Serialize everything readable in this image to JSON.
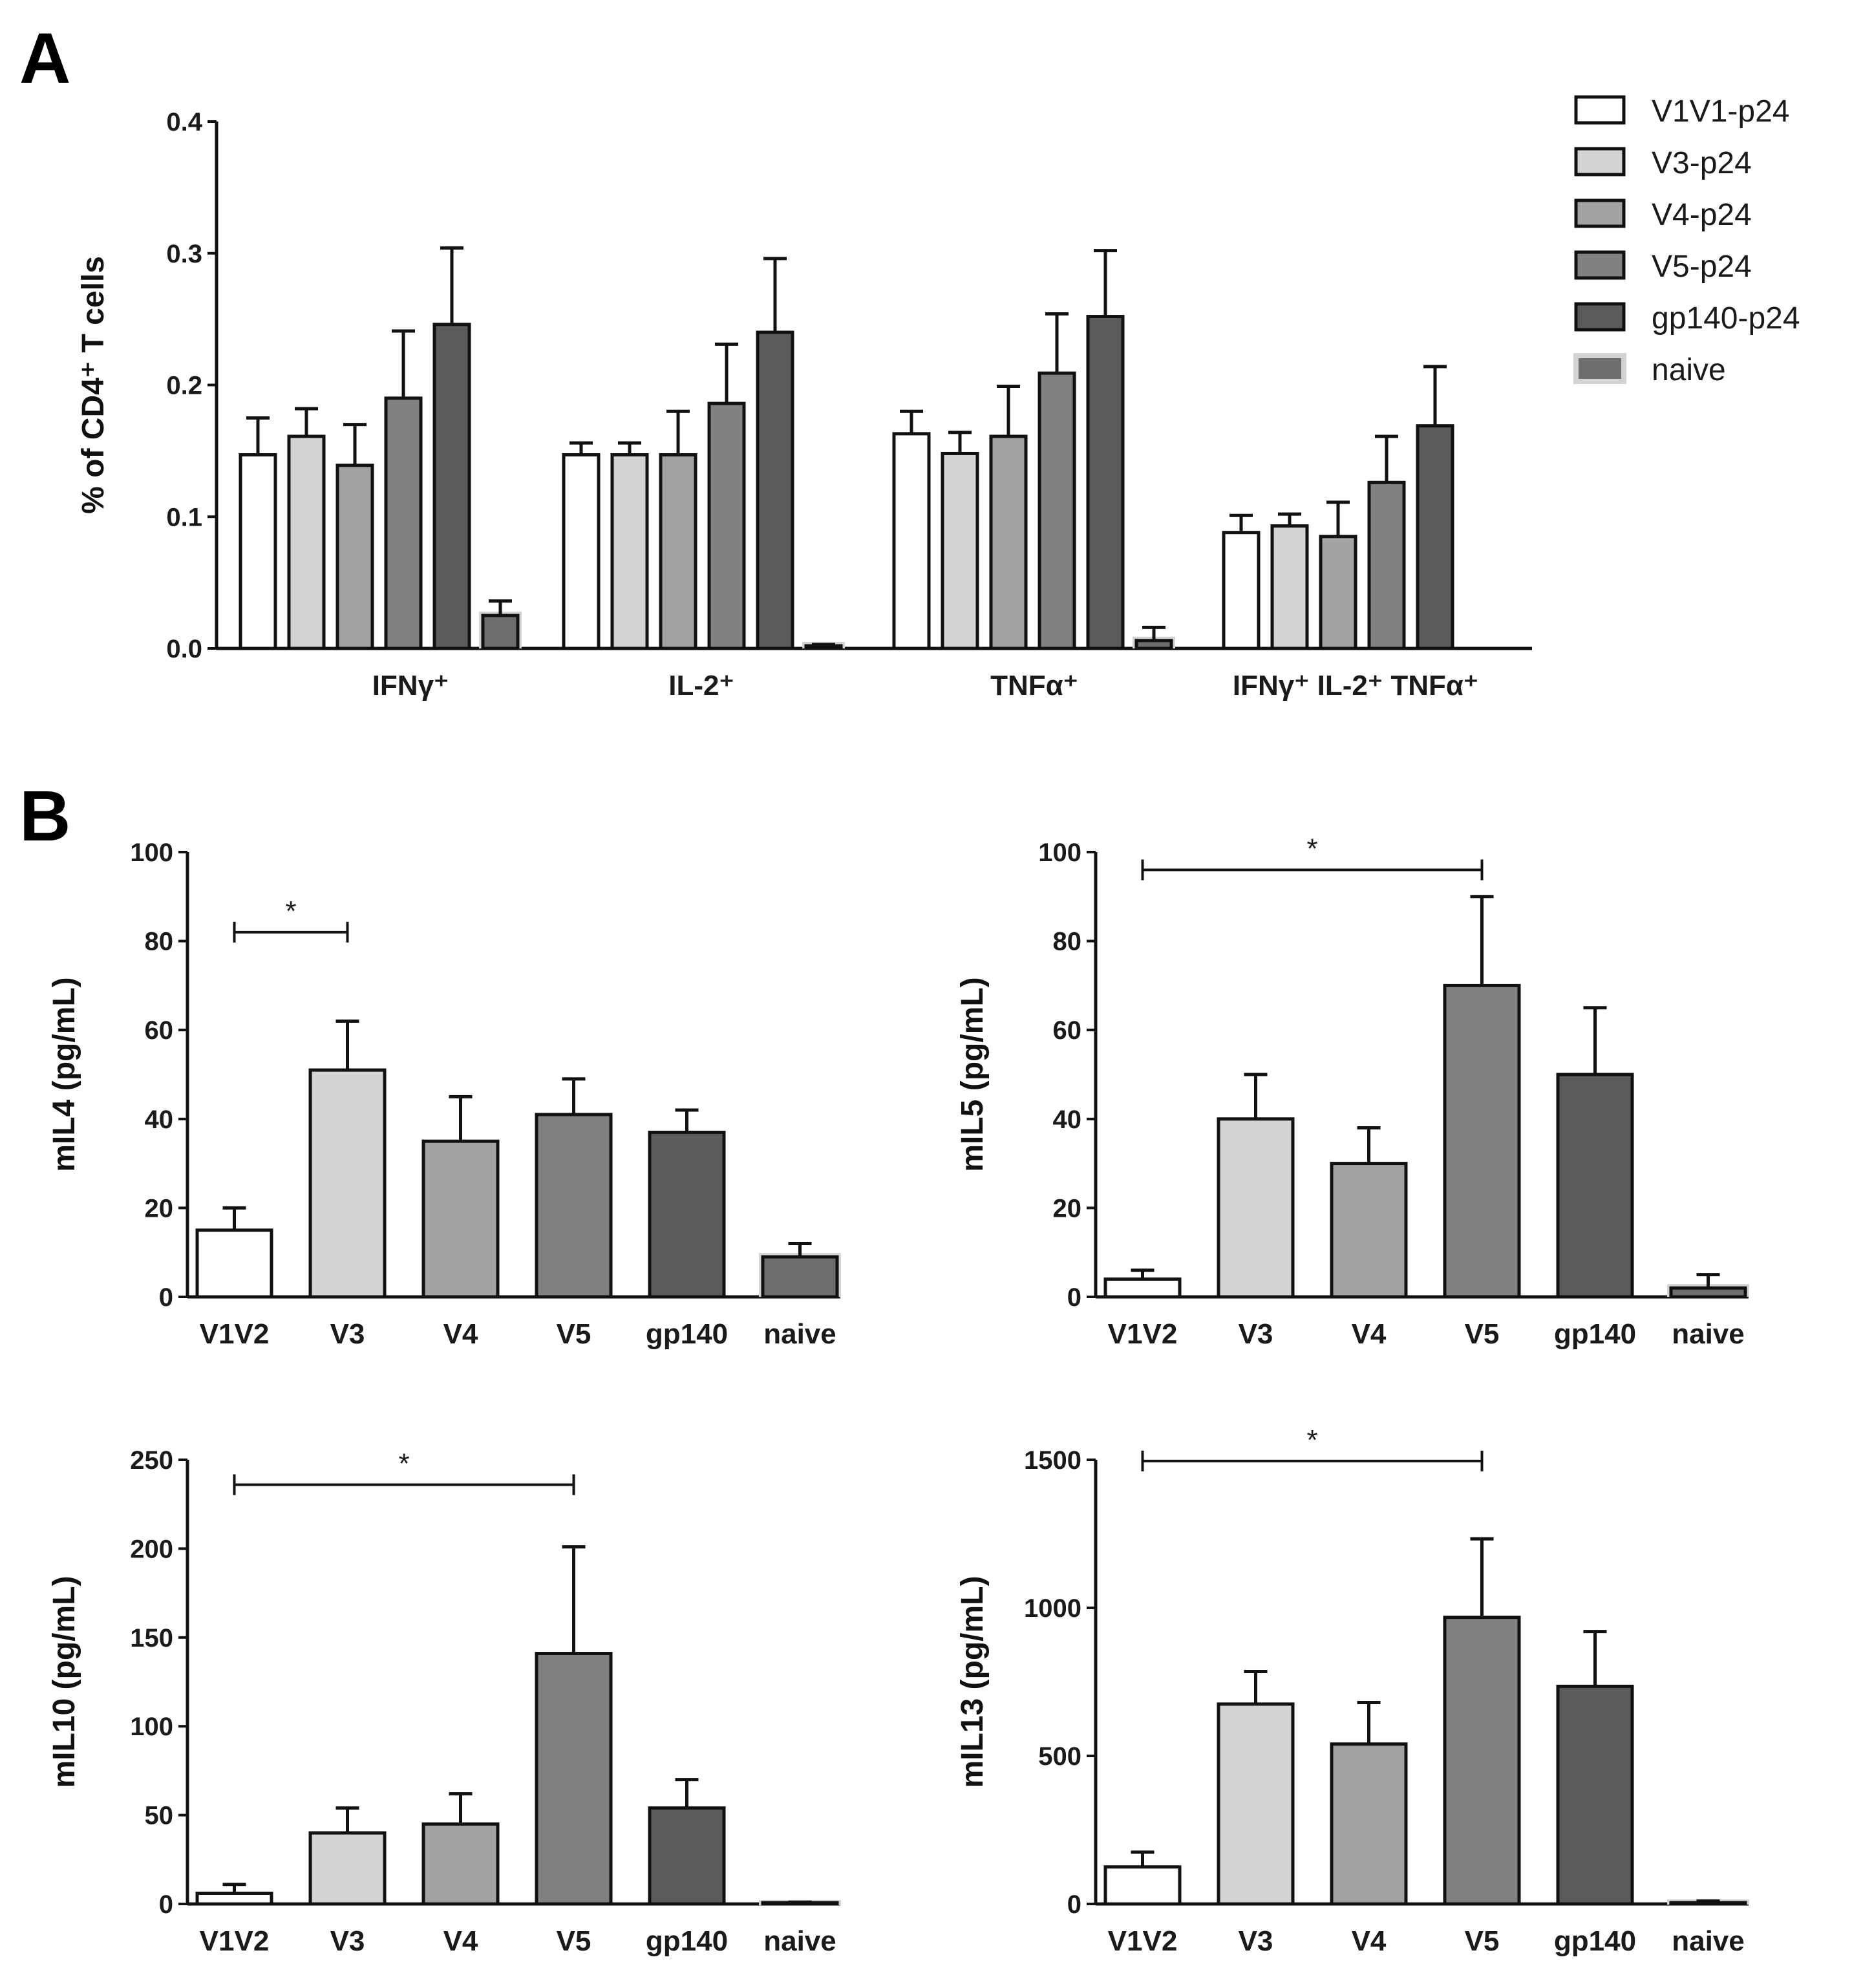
{
  "panels": {
    "a": "A",
    "b": "B"
  },
  "colors": {
    "V1V2": "#ffffff",
    "V3": "#d4d4d4",
    "V4": "#a2a2a2",
    "V5": "#818181",
    "gp140": "#5b5b5b",
    "naive": "#6e6e6e",
    "naive_halo": "#d3d3d3"
  },
  "legend": {
    "entries": [
      "V1V1-p24",
      "V3-p24",
      "V4-p24",
      "V5-p24",
      "gp140-p24",
      "naive"
    ]
  },
  "chart_data": [
    {
      "id": "A",
      "type": "bar",
      "title": "",
      "xlabel": "",
      "ylabel": "% of CD4⁺ T cells",
      "ylim": [
        0,
        0.4
      ],
      "yticks": [
        "0.0",
        "0.1",
        "0.2",
        "0.3",
        "0.4"
      ],
      "categories": [
        "IFNγ⁺",
        "IL-2⁺",
        "TNFα⁺",
        "IFNγ⁺ IL-2⁺ TNFα⁺"
      ],
      "series": [
        {
          "name": "V1V1-p24",
          "values": [
            0.147,
            0.147,
            0.163,
            0.088
          ],
          "errors": [
            0.028,
            0.009,
            0.017,
            0.013
          ]
        },
        {
          "name": "V3-p24",
          "values": [
            0.161,
            0.147,
            0.148,
            0.093
          ],
          "errors": [
            0.021,
            0.009,
            0.016,
            0.009
          ]
        },
        {
          "name": "V4-p24",
          "values": [
            0.139,
            0.147,
            0.161,
            0.085
          ],
          "errors": [
            0.031,
            0.033,
            0.038,
            0.026
          ]
        },
        {
          "name": "V5-p24",
          "values": [
            0.19,
            0.186,
            0.209,
            0.126
          ],
          "errors": [
            0.051,
            0.045,
            0.045,
            0.035
          ]
        },
        {
          "name": "gp140-p24",
          "values": [
            0.246,
            0.24,
            0.252,
            0.169
          ],
          "errors": [
            0.058,
            0.056,
            0.05,
            0.045
          ]
        },
        {
          "name": "naive",
          "values": [
            0.025,
            0.002,
            0.006,
            null
          ],
          "errors": [
            0.011,
            0.001,
            0.01,
            null
          ]
        }
      ],
      "grid": false,
      "legend_position": "top-right"
    },
    {
      "id": "B1",
      "type": "bar",
      "title": "",
      "xlabel": "",
      "ylabel": "mIL4 (pg/mL)",
      "ylim": [
        0,
        100
      ],
      "yticks": [
        "0",
        "20",
        "40",
        "60",
        "80",
        "100"
      ],
      "categories": [
        "V1V2",
        "V3",
        "V4",
        "V5",
        "gp140",
        "naive"
      ],
      "values": [
        15,
        51,
        35,
        41,
        37,
        9
      ],
      "errors": [
        5,
        11,
        10,
        8,
        5,
        3
      ],
      "significance": [
        {
          "from": 0,
          "to": 1,
          "label": "*",
          "y": 82
        }
      ]
    },
    {
      "id": "B2",
      "type": "bar",
      "title": "",
      "xlabel": "",
      "ylabel": "mIL5 (pg/mL)",
      "ylim": [
        0,
        100
      ],
      "yticks": [
        "0",
        "20",
        "40",
        "60",
        "80",
        "100"
      ],
      "categories": [
        "V1V2",
        "V3",
        "V4",
        "V5",
        "gp140",
        "naive"
      ],
      "values": [
        4,
        40,
        30,
        70,
        50,
        2
      ],
      "errors": [
        2,
        10,
        8,
        20,
        15,
        3
      ],
      "significance": [
        {
          "from": 0,
          "to": 3,
          "label": "*",
          "y": 96
        }
      ]
    },
    {
      "id": "B3",
      "type": "bar",
      "title": "",
      "xlabel": "",
      "ylabel": "mIL10 (pg/mL)",
      "ylim": [
        0,
        250
      ],
      "yticks": [
        "0",
        "50",
        "100",
        "150",
        "200",
        "250"
      ],
      "categories": [
        "V1V2",
        "V3",
        "V4",
        "V5",
        "gp140",
        "naive"
      ],
      "values": [
        6,
        40,
        45,
        141,
        54,
        0
      ],
      "errors": [
        5,
        14,
        17,
        60,
        16,
        1
      ],
      "significance": [
        {
          "from": 0,
          "to": 3,
          "label": "*",
          "y": 236
        }
      ]
    },
    {
      "id": "B4",
      "type": "bar",
      "title": "",
      "xlabel": "",
      "ylabel": "mIL13 (pg/mL)",
      "ylim": [
        0,
        1500
      ],
      "yticks": [
        "0",
        "500",
        "1000",
        "1500"
      ],
      "categories": [
        "V1V2",
        "V3",
        "V4",
        "V5",
        "gp140",
        "naive"
      ],
      "values": [
        125,
        675,
        540,
        968,
        735,
        2
      ],
      "errors": [
        50,
        110,
        140,
        265,
        185,
        8
      ],
      "significance": [
        {
          "from": 0,
          "to": 3,
          "label": "*",
          "y": 1496
        }
      ]
    }
  ]
}
